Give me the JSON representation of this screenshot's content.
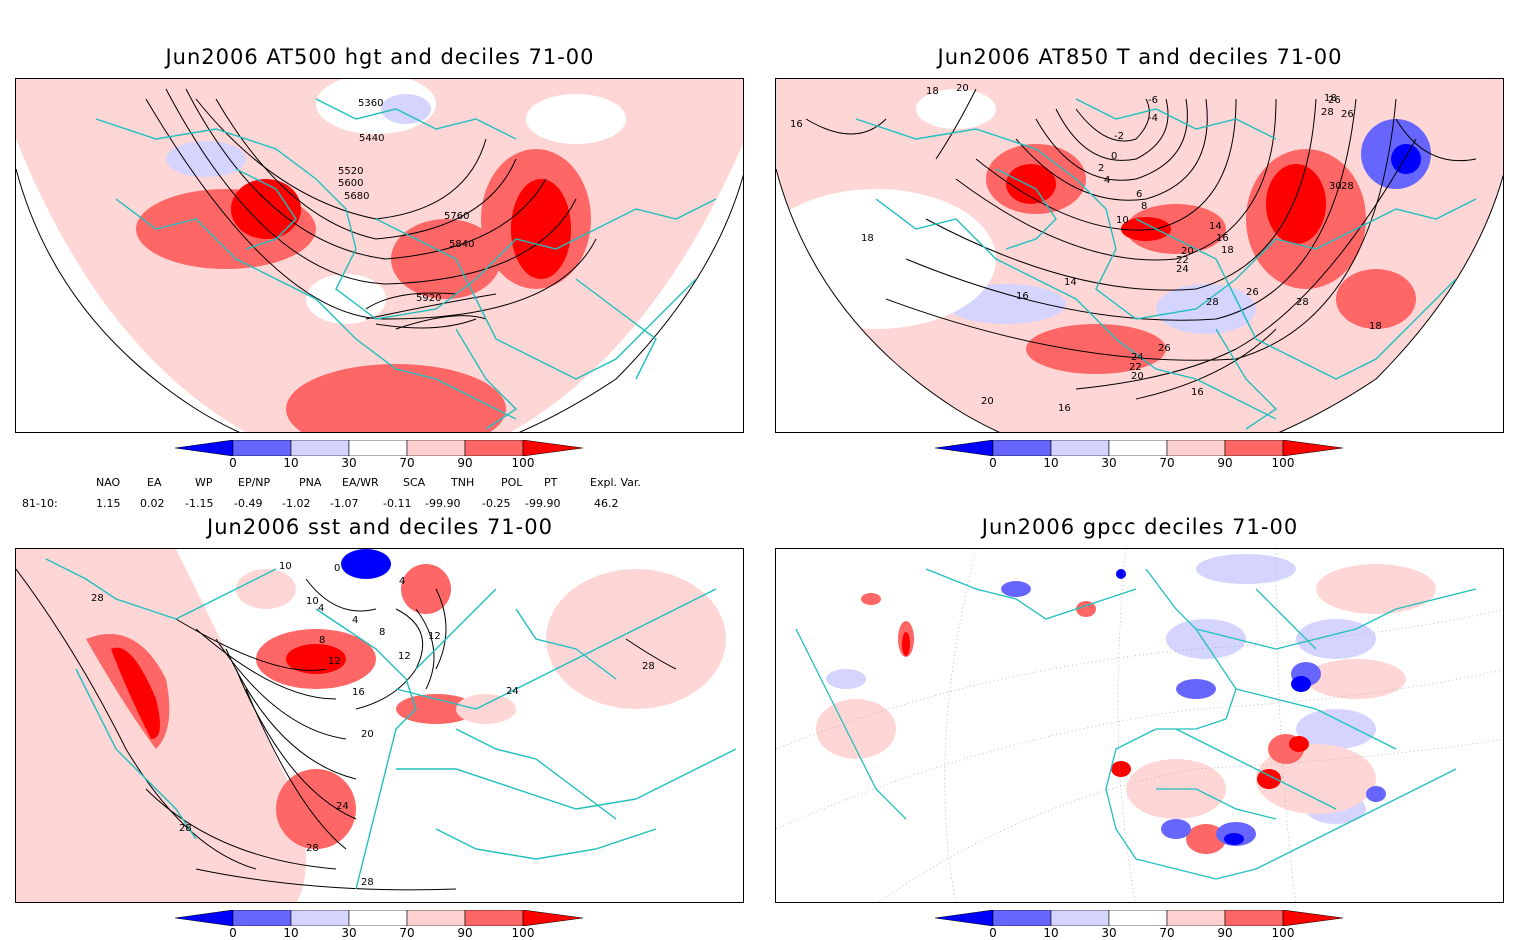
{
  "panels": [
    {
      "title": "Jun2006 AT500 hgt and deciles 71-00",
      "contour_labels": [
        "5360",
        "5440",
        "5520",
        "5600",
        "5680",
        "5760",
        "5840",
        "5920"
      ]
    },
    {
      "title": "Jun2006 AT850 T and deciles 71-00",
      "contour_labels": [
        "18",
        "20",
        "16",
        "-6",
        "-4",
        "-2",
        "0",
        "2",
        "4",
        "6",
        "8",
        "10",
        "14",
        "16",
        "18",
        "20",
        "22",
        "24",
        "26",
        "28",
        "30",
        "18",
        "14",
        "16",
        "28",
        "26",
        "28",
        "26",
        "24",
        "22",
        "20",
        "18",
        "20",
        "16",
        "16",
        "18",
        "26",
        "28",
        "30"
      ]
    },
    {
      "title": "Jun2006 sst and deciles 71-00",
      "contour_labels": [
        "28",
        "10",
        "0",
        "4",
        "10",
        "4",
        "4",
        "8",
        "12",
        "12",
        "8",
        "12",
        "16",
        "20",
        "24",
        "28",
        "28",
        "28",
        "24",
        "28"
      ]
    },
    {
      "title": "Jun2006 gpcc deciles 71-00",
      "contour_labels": []
    }
  ],
  "colorbar": {
    "ticks": [
      "0",
      "10",
      "30",
      "70",
      "90",
      "100"
    ],
    "colors": [
      "#0000ff",
      "#6666ff",
      "#d4d4ff",
      "#ffffff",
      "#ffd0d0",
      "#ff6666",
      "#ff0000"
    ]
  },
  "indices": {
    "headers": [
      "NAO",
      "EA",
      "WP",
      "EP/NP",
      "PNA",
      "EA/WR",
      "SCA",
      "TNH",
      "POL",
      "PT",
      "Expl. Var."
    ],
    "row_label": "81-10:",
    "values": [
      "1.15",
      "0.02",
      "-1.15",
      "-0.49",
      "-1.02",
      "-1.07",
      "-0.11",
      "-99.90",
      "-0.25",
      "-99.90",
      "46.2"
    ]
  }
}
